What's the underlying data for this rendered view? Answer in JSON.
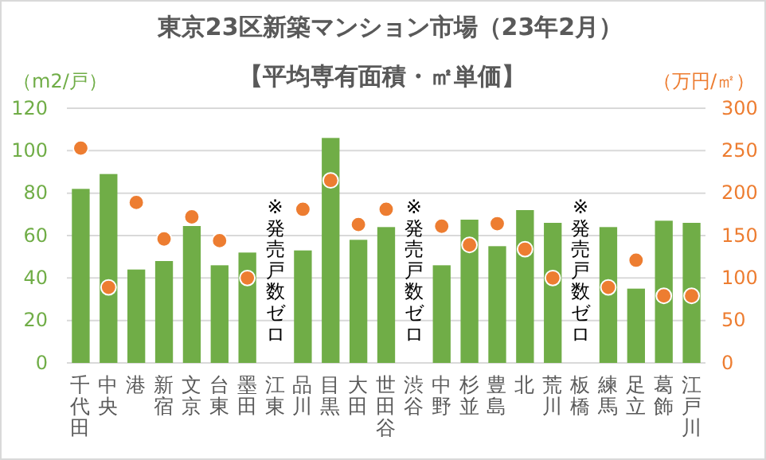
{
  "chart_data": {
    "type": "bar",
    "title": "東京23区新築マンション市場（23年2月）",
    "subtitle": "【平均専有面積・㎡単価】",
    "ylabel": "（m2/戸）",
    "y2label": "（万円/㎡）",
    "categories": [
      "千代田",
      "中央",
      "港",
      "新宿",
      "文京",
      "台東",
      "墨田",
      "江東",
      "品川",
      "目黒",
      "大田",
      "世田谷",
      "渋谷",
      "中野",
      "杉並",
      "豊島",
      "北",
      "荒川",
      "板橋",
      "練馬",
      "足立",
      "葛飾",
      "江戸川"
    ],
    "series": [
      {
        "color": "#70ad47",
        "values": [
          82,
          89,
          44,
          48,
          64.5,
          46,
          52,
          null,
          53,
          106,
          58,
          64,
          null,
          46,
          67.5,
          55,
          72,
          66,
          null,
          64,
          35,
          67,
          66
        ]
      },
      {
        "type": "scatter",
        "axis": "y2",
        "color": "#ed7d31",
        "marker": "circle",
        "values": [
          253,
          89,
          189,
          146,
          172,
          144,
          100,
          null,
          181,
          215,
          163,
          181,
          null,
          161,
          139,
          164,
          134,
          100,
          null,
          89,
          121,
          79,
          79
        ]
      }
    ],
    "ylim": [
      0,
      120
    ],
    "yticks": [
      0,
      20,
      40,
      60,
      80,
      100,
      120
    ],
    "y2lim": [
      0,
      300
    ],
    "y2ticks": [
      0,
      50,
      100,
      150,
      200,
      250,
      300
    ],
    "grid": "y",
    "annotations": [
      "※発売戸数ゼロ",
      "※発売戸数ゼロ",
      "※発売戸数ゼロ"
    ]
  }
}
